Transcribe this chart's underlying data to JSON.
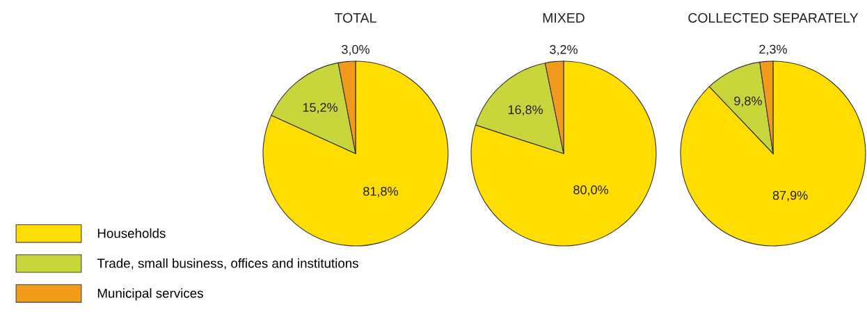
{
  "chart_data": [
    {
      "type": "pie",
      "title": "TOTAL",
      "categories": [
        "Households",
        "Trade, small business, offices and institutions",
        "Municipal services"
      ],
      "values": [
        81.8,
        15.2,
        3.0
      ],
      "value_labels": [
        "81,8%",
        "15,2%",
        "3,0%"
      ],
      "colors": [
        "#ffdd00",
        "#c9d63b",
        "#f29a1a"
      ],
      "legend": "bottom left"
    },
    {
      "type": "pie",
      "title": "MIXED",
      "categories": [
        null,
        null,
        null
      ],
      "values": [
        80.0,
        16.8,
        3.2
      ],
      "value_labels": [
        "80,0%",
        "16,8%",
        "3,2%"
      ],
      "colors": [
        "#ffdd00",
        "#c9d63b",
        "#f29a1a"
      ]
    },
    {
      "type": "pie",
      "title": "COLLECTED SEPARATELY",
      "categories": [
        null,
        null,
        null
      ],
      "values": [
        87.9,
        9.8,
        2.3
      ],
      "value_labels": [
        "87,9%",
        "9,8%",
        "2,3%"
      ],
      "colors": [
        "#ffdd00",
        "#c9d63b",
        "#f29a1a"
      ]
    }
  ]
}
